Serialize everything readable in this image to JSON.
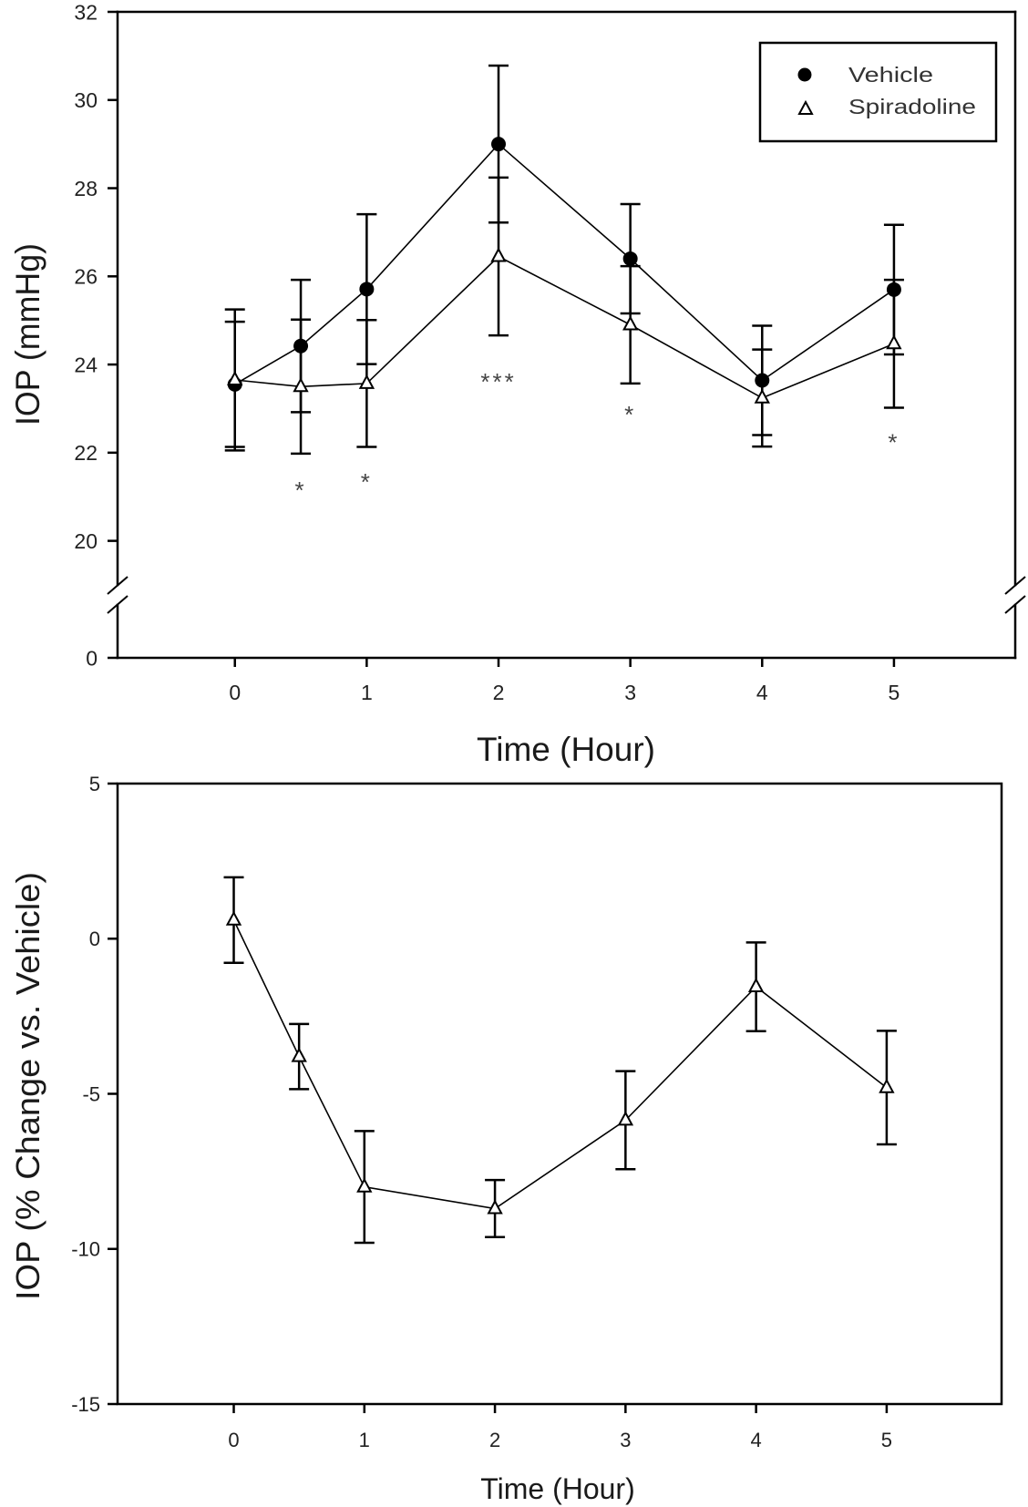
{
  "figure": {
    "panels": 2
  },
  "colors": {
    "axis": "#000000",
    "line": "#000000",
    "text": "#222222",
    "annotation": "#444444",
    "filled_marker": "#000000",
    "open_marker_fill": "#ffffff"
  },
  "chart_data": [
    {
      "type": "line",
      "title": "",
      "xlabel": "Time (Hour)",
      "ylabel": "IOP (mmHg)",
      "xlim": [
        -0.89,
        5.92
      ],
      "ylim": [
        0,
        32
      ],
      "y_axis_break": [
        1,
        19
      ],
      "grid": false,
      "xticks": [
        0,
        1,
        2,
        3,
        4,
        5
      ],
      "xtick_labels": [
        "0",
        "1",
        "2",
        "3",
        "4",
        "5"
      ],
      "yticks": [
        0,
        20,
        22,
        24,
        26,
        28,
        30,
        32
      ],
      "ytick_labels": [
        "0",
        "20",
        "22",
        "24",
        "26",
        "28",
        "30",
        "32"
      ],
      "x": [
        0,
        0.5,
        1,
        2,
        3,
        4,
        5
      ],
      "series": [
        {
          "name": "Vehicle",
          "marker": "filled-circle",
          "values": [
            23.55,
            24.42,
            25.71,
            29.0,
            26.4,
            23.64,
            25.7
          ],
          "error": [
            1.42,
            1.5,
            1.7,
            1.78,
            1.24,
            1.24,
            1.47
          ]
        },
        {
          "name": "Spiradoline",
          "marker": "open-triangle",
          "values": [
            23.65,
            23.5,
            23.57,
            26.45,
            24.9,
            23.24,
            24.47
          ],
          "error": [
            1.6,
            1.52,
            1.44,
            1.79,
            1.33,
            1.1,
            1.45
          ]
        }
      ],
      "legend": {
        "position": "top-right",
        "entries": [
          "Vehicle",
          "Spiradoline"
        ]
      },
      "annotations": [
        {
          "x": 0.5,
          "y": 21.27,
          "text": "*"
        },
        {
          "x": 1,
          "y": 21.46,
          "text": "*"
        },
        {
          "x": 2,
          "y": 23.73,
          "text": "***"
        },
        {
          "x": 3,
          "y": 22.99,
          "text": "*"
        },
        {
          "x": 5,
          "y": 22.35,
          "text": "*"
        }
      ]
    },
    {
      "type": "line",
      "title": "",
      "xlabel": "Time (Hour)",
      "ylabel": "IOP (% Change vs. Vehicle)",
      "xlim": [
        -0.89,
        5.88
      ],
      "ylim": [
        -15,
        5
      ],
      "grid": false,
      "xticks": [
        0,
        1,
        2,
        3,
        4,
        5
      ],
      "xtick_labels": [
        "0",
        "1",
        "2",
        "3",
        "4",
        "5"
      ],
      "yticks": [
        -15,
        -10,
        -5,
        0,
        5
      ],
      "ytick_labels": [
        "-15",
        "-10",
        "-5",
        "0",
        "5"
      ],
      "x": [
        0,
        0.5,
        1,
        2,
        3,
        4,
        5
      ],
      "series": [
        {
          "name": "Spiradoline",
          "marker": "open-triangle",
          "values": [
            0.6,
            -3.8,
            -8.0,
            -8.7,
            -5.85,
            -1.55,
            -4.8
          ],
          "error": [
            1.38,
            1.05,
            1.8,
            0.92,
            1.58,
            1.43,
            1.83
          ]
        }
      ],
      "legend": null,
      "annotations": []
    }
  ]
}
